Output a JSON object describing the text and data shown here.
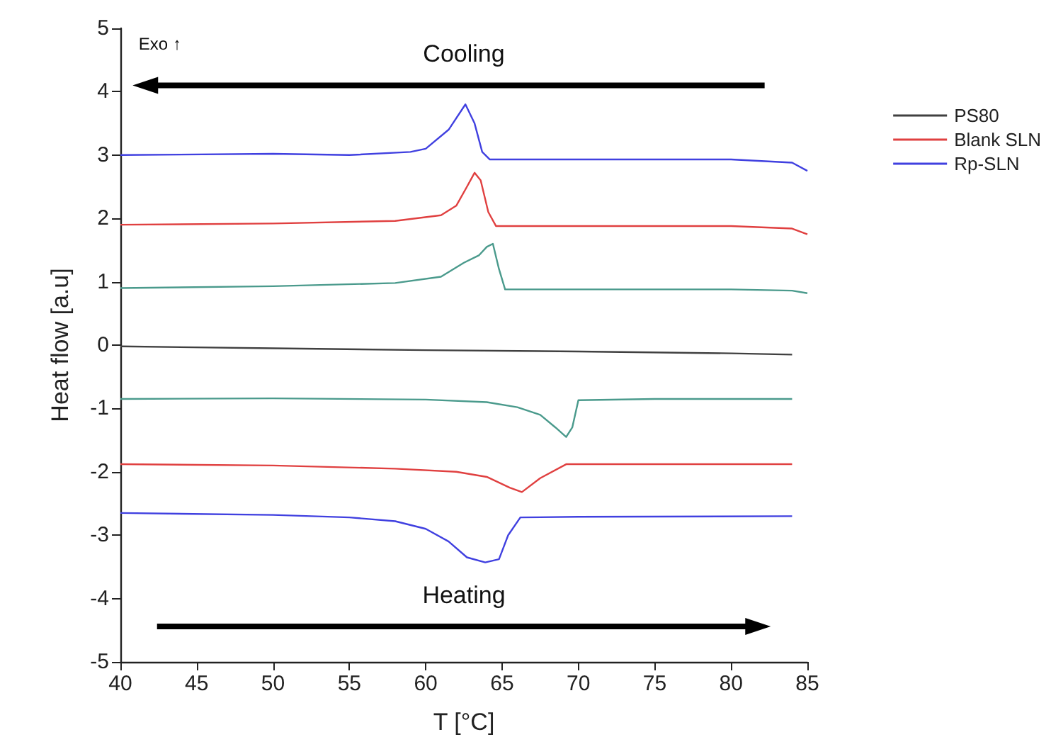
{
  "chart_data": {
    "type": "line",
    "xlabel": "T [°C]",
    "ylabel": "Heat flow [a.u]",
    "annotations": [
      "Exo ↑",
      "Cooling",
      "Heating"
    ],
    "xlim": [
      40,
      85
    ],
    "xticks": [
      40,
      45,
      50,
      55,
      60,
      65,
      70,
      75,
      80,
      85
    ],
    "ylim": [
      -5,
      5
    ],
    "yticks": [
      -5,
      -4,
      -3,
      -2,
      -1,
      0,
      1,
      2,
      3,
      4,
      5
    ],
    "grid": false,
    "legend": "right",
    "marker": "none",
    "line_style": "solid",
    "series": [
      {
        "name": "PS80",
        "color": "#404040",
        "x": [
          40,
          50,
          60,
          70,
          80,
          84
        ],
        "values": [
          -0.02,
          -0.05,
          -0.08,
          -0.1,
          -0.13,
          -0.15
        ]
      },
      {
        "color": "#4a9a8c",
        "x": [
          40,
          50,
          58,
          61,
          62.5,
          63.5,
          64,
          64.4,
          64.8,
          65.2,
          70,
          80,
          84,
          85
        ],
        "values": [
          0.9,
          0.93,
          0.98,
          1.08,
          1.3,
          1.42,
          1.55,
          1.6,
          1.2,
          0.88,
          0.88,
          0.88,
          0.86,
          0.82
        ]
      },
      {
        "color": "#4a9a8c",
        "x": [
          40,
          50,
          60,
          64,
          66,
          67.5,
          68.5,
          69.2,
          69.6,
          70,
          75,
          84
        ],
        "values": [
          -0.85,
          -0.84,
          -0.86,
          -0.9,
          -0.98,
          -1.1,
          -1.3,
          -1.45,
          -1.3,
          -0.87,
          -0.85,
          -0.85
        ]
      },
      {
        "name": "Blank SLN",
        "color": "#e04040",
        "x": [
          40,
          50,
          58,
          61,
          62,
          62.7,
          63.2,
          63.6,
          64.1,
          64.6,
          70,
          80,
          84,
          85
        ],
        "values": [
          1.9,
          1.92,
          1.96,
          2.05,
          2.2,
          2.5,
          2.72,
          2.6,
          2.1,
          1.88,
          1.88,
          1.88,
          1.84,
          1.75
        ]
      },
      {
        "color": "#e04040",
        "x": [
          40,
          50,
          58,
          62,
          64,
          65.5,
          66.3,
          67.5,
          69.2,
          75,
          84
        ],
        "values": [
          -1.88,
          -1.9,
          -1.95,
          -2.0,
          -2.08,
          -2.25,
          -2.32,
          -2.1,
          -1.88,
          -1.88,
          -1.88
        ]
      },
      {
        "name": "Rp-SLN",
        "color": "#4040e0",
        "x": [
          40,
          50,
          55,
          59,
          60,
          61.5,
          62.6,
          63.2,
          63.7,
          64.2,
          70,
          80,
          84,
          85
        ],
        "values": [
          3.0,
          3.02,
          3.0,
          3.05,
          3.1,
          3.4,
          3.8,
          3.5,
          3.05,
          2.93,
          2.93,
          2.93,
          2.88,
          2.75
        ]
      },
      {
        "color": "#4040e0",
        "x": [
          40,
          50,
          55,
          58,
          60,
          61.5,
          62.7,
          63.9,
          64.8,
          65.4,
          66.2,
          70,
          84
        ],
        "values": [
          -2.65,
          -2.68,
          -2.72,
          -2.78,
          -2.9,
          -3.1,
          -3.35,
          -3.43,
          -3.38,
          -3.0,
          -2.72,
          -2.71,
          -2.7
        ]
      }
    ]
  }
}
